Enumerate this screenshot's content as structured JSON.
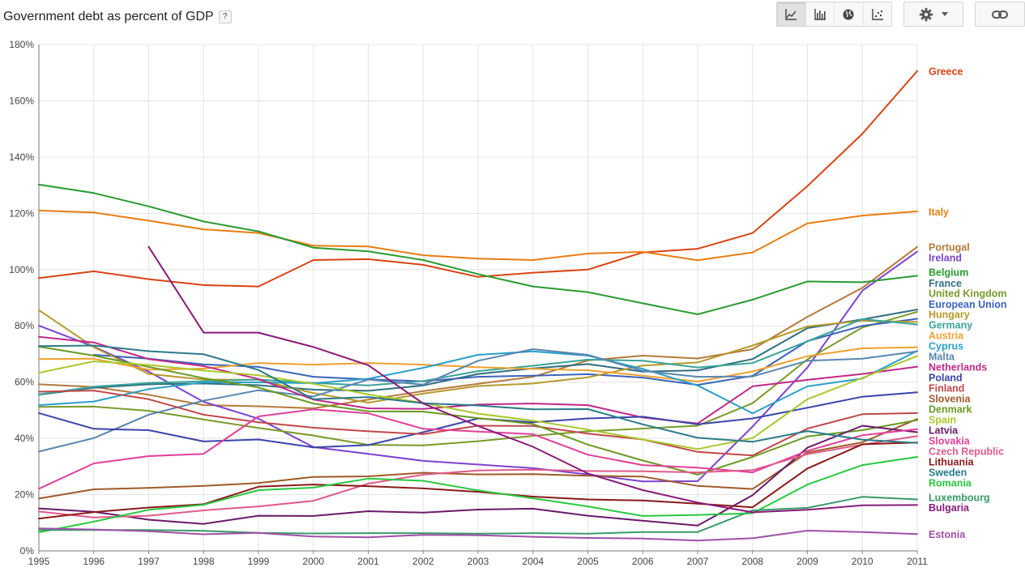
{
  "title": "Government debt as percent of GDP",
  "help_label": "?",
  "toolbar": {
    "views": [
      {
        "icon": "line-chart-icon",
        "selected": true
      },
      {
        "icon": "bar-chart-icon",
        "selected": false
      },
      {
        "icon": "globe-map-icon",
        "selected": false
      },
      {
        "icon": "scatter-plot-icon",
        "selected": false
      }
    ],
    "settings_icon": "gear-icon",
    "dropdown_icon": "caret-down-icon",
    "link_icon": "link-icon"
  },
  "chart_data": {
    "type": "line",
    "title": "Government debt as percent of GDP",
    "xlabel": "",
    "ylabel": "",
    "x": [
      1995,
      1996,
      1997,
      1998,
      1999,
      2000,
      2001,
      2002,
      2003,
      2004,
      2005,
      2006,
      2007,
      2008,
      2009,
      2010,
      2011
    ],
    "ylim": [
      0,
      180
    ],
    "yticks": [
      0,
      20,
      40,
      60,
      80,
      100,
      120,
      140,
      160,
      180
    ],
    "ytick_labels": [
      "0%",
      "20%",
      "40%",
      "60%",
      "80%",
      "100%",
      "120%",
      "140%",
      "160%",
      "180%"
    ],
    "grid": true,
    "legend": "right, labels at line ends",
    "series": [
      {
        "name": "Greece",
        "color": "#d84315",
        "values": [
          97.0,
          99.4,
          96.6,
          94.5,
          94.0,
          103.4,
          103.7,
          101.7,
          97.4,
          98.9,
          100.0,
          106.1,
          107.4,
          113.0,
          129.7,
          148.3,
          170.6
        ]
      },
      {
        "name": "Italy",
        "color": "#e67e10",
        "values": [
          121.0,
          120.3,
          117.4,
          114.3,
          113.0,
          108.5,
          108.2,
          105.1,
          103.9,
          103.4,
          105.7,
          106.3,
          103.3,
          106.1,
          116.4,
          119.2,
          120.7
        ]
      },
      {
        "name": "Portugal",
        "color": "#b5793b",
        "values": [
          59.2,
          58.3,
          55.5,
          51.8,
          51.4,
          50.7,
          53.8,
          56.8,
          59.4,
          61.9,
          67.7,
          69.4,
          68.4,
          71.7,
          83.2,
          93.5,
          108.1
        ]
      },
      {
        "name": "Ireland",
        "color": "#7c43d0",
        "values": [
          80.1,
          72.6,
          63.7,
          53.0,
          47.0,
          36.9,
          34.5,
          32.0,
          30.7,
          29.4,
          27.2,
          24.7,
          24.8,
          44.2,
          65.2,
          92.5,
          106.4
        ]
      },
      {
        "name": "Belgium",
        "color": "#2a9a31",
        "values": [
          130.2,
          127.2,
          122.5,
          117.1,
          113.6,
          107.8,
          106.5,
          103.4,
          98.4,
          94.0,
          92.0,
          88.0,
          84.1,
          89.3,
          95.8,
          95.5,
          97.8
        ]
      },
      {
        "name": "France",
        "color": "#2f6f7f",
        "values": [
          55.5,
          58.0,
          59.2,
          59.5,
          58.9,
          57.3,
          56.9,
          58.8,
          62.9,
          64.9,
          66.4,
          63.7,
          64.2,
          68.2,
          79.2,
          82.3,
          85.8
        ]
      },
      {
        "name": "United Kingdom",
        "color": "#7a9a2a",
        "values": [
          51.2,
          51.3,
          49.8,
          46.7,
          43.7,
          41.0,
          37.7,
          37.5,
          39.0,
          40.9,
          42.5,
          43.5,
          44.5,
          52.5,
          68.1,
          79.4,
          85.0
        ]
      },
      {
        "name": "European Union",
        "color": "#3c63b8",
        "values": [
          null,
          69.7,
          68.3,
          66.3,
          65.4,
          61.9,
          61.0,
          60.3,
          61.9,
          62.3,
          62.8,
          61.6,
          59.0,
          62.2,
          74.6,
          80.0,
          82.5
        ]
      },
      {
        "name": "Hungary",
        "color": "#b59a2a",
        "values": [
          85.6,
          72.4,
          62.9,
          60.9,
          60.8,
          56.1,
          52.7,
          55.9,
          58.6,
          59.5,
          61.7,
          65.9,
          67.0,
          73.0,
          79.8,
          81.8,
          81.4
        ]
      },
      {
        "name": "Germany",
        "color": "#3aa39a",
        "values": [
          55.6,
          58.4,
          59.7,
          60.3,
          60.9,
          59.7,
          58.8,
          60.4,
          63.9,
          65.8,
          68.0,
          67.6,
          65.2,
          66.8,
          74.5,
          82.4,
          80.5
        ]
      },
      {
        "name": "Austria",
        "color": "#f0a030",
        "values": [
          68.2,
          68.3,
          64.4,
          64.8,
          66.8,
          66.2,
          66.8,
          66.2,
          65.3,
          64.7,
          64.2,
          62.3,
          60.2,
          63.8,
          69.2,
          72.0,
          72.4
        ]
      },
      {
        "name": "Cyprus",
        "color": "#2aa0c8",
        "values": [
          51.8,
          53.1,
          57.5,
          59.9,
          59.9,
          59.6,
          61.2,
          65.1,
          69.7,
          70.9,
          69.4,
          64.7,
          58.8,
          48.9,
          58.5,
          61.3,
          71.1
        ]
      },
      {
        "name": "Malta",
        "color": "#5a86b0",
        "values": [
          35.3,
          40.1,
          48.4,
          53.4,
          57.1,
          54.9,
          60.9,
          59.1,
          67.6,
          71.7,
          69.7,
          64.0,
          61.9,
          62.0,
          67.6,
          68.3,
          70.9
        ]
      },
      {
        "name": "Netherlands",
        "color": "#c0298a",
        "values": [
          76.1,
          74.1,
          68.2,
          65.7,
          61.1,
          53.8,
          50.7,
          50.5,
          52.0,
          52.4,
          51.8,
          47.4,
          45.3,
          58.5,
          60.8,
          62.9,
          65.5
        ]
      },
      {
        "name": "Poland",
        "color": "#3a45a8",
        "values": [
          49.0,
          43.4,
          42.9,
          38.9,
          39.6,
          36.8,
          37.6,
          42.2,
          47.1,
          45.7,
          47.1,
          47.7,
          45.0,
          47.1,
          50.9,
          54.8,
          56.4
        ]
      },
      {
        "name": "Finland",
        "color": "#c0484a",
        "values": [
          56.6,
          57.0,
          53.9,
          48.4,
          45.7,
          43.8,
          42.5,
          41.5,
          44.5,
          44.4,
          41.7,
          39.6,
          35.2,
          33.9,
          43.5,
          48.6,
          49.0
        ]
      },
      {
        "name": "Slovenia",
        "color": "#a05a2a",
        "values": [
          18.6,
          21.9,
          22.4,
          23.1,
          24.1,
          26.3,
          26.5,
          27.8,
          27.2,
          27.3,
          26.7,
          26.4,
          23.1,
          22.0,
          35.0,
          38.6,
          46.9
        ]
      },
      {
        "name": "Denmark",
        "color": "#6a9a22",
        "values": [
          72.6,
          69.4,
          65.4,
          61.4,
          58.1,
          52.4,
          49.6,
          49.5,
          47.2,
          45.1,
          37.8,
          32.1,
          27.1,
          33.4,
          40.7,
          42.9,
          46.5
        ]
      },
      {
        "name": "Spain",
        "color": "#a8c82a",
        "values": [
          63.3,
          67.4,
          66.1,
          64.1,
          62.4,
          59.4,
          55.6,
          52.6,
          48.8,
          46.3,
          43.1,
          39.6,
          36.2,
          40.1,
          53.9,
          61.5,
          69.3
        ]
      },
      {
        "name": "Latvia",
        "color": "#6a1a6a",
        "values": [
          15.1,
          13.9,
          11.1,
          9.6,
          12.5,
          12.4,
          14.1,
          13.6,
          14.7,
          15.0,
          12.5,
          10.7,
          9.0,
          19.8,
          36.7,
          44.5,
          42.2
        ]
      },
      {
        "name": "Slovakia",
        "color": "#e0409a",
        "values": [
          22.1,
          31.1,
          33.7,
          34.5,
          47.8,
          50.3,
          48.9,
          43.4,
          42.4,
          41.5,
          34.2,
          30.5,
          29.6,
          27.9,
          35.6,
          41.1,
          43.3
        ]
      },
      {
        "name": "Czech Republic",
        "color": "#e05a8a",
        "values": [
          14.0,
          11.9,
          12.5,
          14.4,
          15.8,
          17.8,
          23.9,
          27.1,
          28.6,
          28.9,
          28.4,
          28.3,
          27.9,
          28.7,
          34.4,
          37.8,
          40.8
        ]
      },
      {
        "name": "Lithuania",
        "color": "#8a1a1a",
        "values": [
          11.5,
          13.8,
          15.4,
          16.6,
          22.8,
          23.6,
          23.0,
          22.2,
          21.0,
          19.3,
          18.3,
          17.9,
          16.8,
          15.5,
          29.3,
          37.9,
          38.5
        ]
      },
      {
        "name": "Sweden",
        "color": "#2a7a8a",
        "values": [
          72.8,
          73.0,
          71.0,
          69.9,
          64.3,
          53.9,
          54.7,
          52.5,
          51.7,
          50.3,
          50.4,
          45.0,
          40.2,
          38.8,
          42.6,
          39.5,
          38.4
        ]
      },
      {
        "name": "Romania",
        "color": "#2ac840",
        "values": [
          6.6,
          10.4,
          14.6,
          16.4,
          21.6,
          22.5,
          25.7,
          24.9,
          21.5,
          18.7,
          15.8,
          12.4,
          12.8,
          13.4,
          23.6,
          30.5,
          33.4
        ]
      },
      {
        "name": "Luxembourg",
        "color": "#3a9a6a",
        "values": [
          7.4,
          7.4,
          7.4,
          7.1,
          6.4,
          6.2,
          6.3,
          6.3,
          6.1,
          6.3,
          6.1,
          6.7,
          6.7,
          14.4,
          15.3,
          19.2,
          18.3
        ]
      },
      {
        "name": "Bulgaria",
        "color": "#8a1a7a",
        "values": [
          null,
          null,
          108.1,
          77.6,
          77.6,
          72.5,
          66.0,
          52.4,
          44.4,
          37.0,
          27.5,
          21.6,
          17.2,
          13.7,
          14.6,
          16.2,
          16.3
        ]
      },
      {
        "name": "Estonia",
        "color": "#a050a8",
        "values": [
          8.0,
          7.6,
          7.0,
          5.9,
          6.4,
          5.1,
          4.8,
          5.7,
          5.6,
          5.0,
          4.6,
          4.4,
          3.7,
          4.5,
          7.2,
          6.7,
          6.0
        ]
      }
    ],
    "legend_entries": [
      {
        "name": "Greece",
        "color": "#d84315",
        "label_y": 170.6
      },
      {
        "name": "Italy",
        "color": "#e67e10",
        "label_y": 120.7
      },
      {
        "name": "Portugal",
        "color": "#b5793b",
        "label_y": 108.1
      },
      {
        "name": "Ireland",
        "color": "#7c43d0",
        "label_y": 104.4
      },
      {
        "name": "Belgium",
        "color": "#2a9a31",
        "label_y": 99.2
      },
      {
        "name": "France",
        "color": "#2f6f7f",
        "label_y": 95.4
      },
      {
        "name": "United Kingdom",
        "color": "#7a9a2a",
        "label_y": 91.7
      },
      {
        "name": "European Union",
        "color": "#3c63b8",
        "label_y": 87.9
      },
      {
        "name": "Hungary",
        "color": "#b59a2a",
        "label_y": 84.2
      },
      {
        "name": "Germany",
        "color": "#3aa39a",
        "label_y": 80.5
      },
      {
        "name": "Austria",
        "color": "#f0a030",
        "label_y": 76.7
      },
      {
        "name": "Cyprus",
        "color": "#2aa0c8",
        "label_y": 73.0
      },
      {
        "name": "Malta",
        "color": "#5a86b0",
        "label_y": 69.2
      },
      {
        "name": "Netherlands",
        "color": "#c0298a",
        "label_y": 65.5
      },
      {
        "name": "Poland",
        "color": "#3a45a8",
        "label_y": 61.8
      },
      {
        "name": "Finland",
        "color": "#c0484a",
        "label_y": 58.0
      },
      {
        "name": "Slovenia",
        "color": "#a05a2a",
        "label_y": 54.3
      },
      {
        "name": "Denmark",
        "color": "#6a9a22",
        "label_y": 50.5
      },
      {
        "name": "Spain",
        "color": "#a8c82a",
        "label_y": 46.8
      },
      {
        "name": "Latvia",
        "color": "#6a1a6a",
        "label_y": 43.1
      },
      {
        "name": "Slovakia",
        "color": "#e0409a",
        "label_y": 39.3
      },
      {
        "name": "Czech Republic",
        "color": "#e05a8a",
        "label_y": 35.6
      },
      {
        "name": "Lithuania",
        "color": "#8a1a1a",
        "label_y": 31.8
      },
      {
        "name": "Sweden",
        "color": "#2a7a8a",
        "label_y": 28.1
      },
      {
        "name": "Romania",
        "color": "#2ac840",
        "label_y": 24.4
      },
      {
        "name": "Luxembourg",
        "color": "#3a9a6a",
        "label_y": 19.2
      },
      {
        "name": "Bulgaria",
        "color": "#8a1a7a",
        "label_y": 15.5
      },
      {
        "name": "Estonia",
        "color": "#a050a8",
        "label_y": 6.0
      }
    ]
  }
}
